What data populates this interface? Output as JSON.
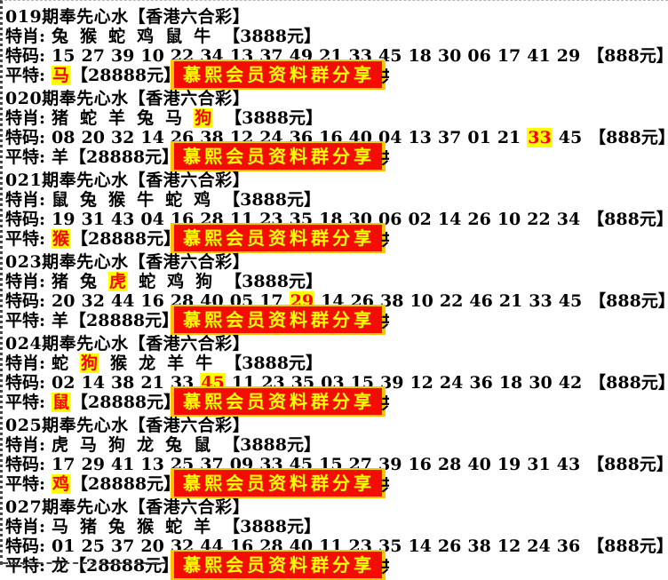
{
  "labels": {
    "zodiac_label": "特肖:",
    "number_label": "特码:",
    "flat_label": "平特:",
    "zodiac_price": "【3888元】",
    "number_price": "【888元】",
    "flat_price": "【28888元】"
  },
  "banner": {
    "text": "慕熙会员资料群分享",
    "covered_fragment_left": "加",
    "covered_fragment_right": "共"
  },
  "colors": {
    "highlight_bg": "#ffff00",
    "highlight_fg": "#fb0000",
    "banner_bg": "#f20d00",
    "banner_border": "#ffc400",
    "banner_fg": "#ffff00"
  },
  "blocks": [
    {
      "title": "019期奉先心水【香港六合彩】",
      "zodiacs": [
        {
          "t": "兔",
          "hl": false
        },
        {
          "t": "猴",
          "hl": false
        },
        {
          "t": "蛇",
          "hl": false
        },
        {
          "t": "鸡",
          "hl": false
        },
        {
          "t": "鼠",
          "hl": false
        },
        {
          "t": "牛",
          "hl": false
        }
      ],
      "numbers": [
        {
          "t": "15",
          "hl": false
        },
        {
          "t": "27",
          "hl": false
        },
        {
          "t": "39",
          "hl": false
        },
        {
          "t": "10",
          "hl": false
        },
        {
          "t": "22",
          "hl": false
        },
        {
          "t": "34",
          "hl": false
        },
        {
          "t": "13",
          "hl": false
        },
        {
          "t": "37",
          "hl": false
        },
        {
          "t": "49",
          "hl": false
        },
        {
          "t": "21",
          "hl": false
        },
        {
          "t": "33",
          "hl": false
        },
        {
          "t": "45",
          "hl": false
        },
        {
          "t": "18",
          "hl": false
        },
        {
          "t": "30",
          "hl": false
        },
        {
          "t": "06",
          "hl": false
        },
        {
          "t": "17",
          "hl": false
        },
        {
          "t": "41",
          "hl": false
        },
        {
          "t": "29",
          "hl": false
        }
      ],
      "flat": {
        "t": "马",
        "hl": true
      }
    },
    {
      "title": "020期奉先心水【香港六合彩】",
      "zodiacs": [
        {
          "t": "猪",
          "hl": false
        },
        {
          "t": "蛇",
          "hl": false
        },
        {
          "t": "羊",
          "hl": false
        },
        {
          "t": "兔",
          "hl": false
        },
        {
          "t": "马",
          "hl": false
        },
        {
          "t": "狗",
          "hl": true
        }
      ],
      "numbers": [
        {
          "t": "08",
          "hl": false
        },
        {
          "t": "20",
          "hl": false
        },
        {
          "t": "32",
          "hl": false
        },
        {
          "t": "14",
          "hl": false
        },
        {
          "t": "26",
          "hl": false
        },
        {
          "t": "38",
          "hl": false
        },
        {
          "t": "12",
          "hl": false
        },
        {
          "t": "24",
          "hl": false
        },
        {
          "t": "36",
          "hl": false
        },
        {
          "t": "16",
          "hl": false
        },
        {
          "t": "40",
          "hl": false
        },
        {
          "t": "04",
          "hl": false
        },
        {
          "t": "13",
          "hl": false
        },
        {
          "t": "37",
          "hl": false
        },
        {
          "t": "01",
          "hl": false
        },
        {
          "t": "21",
          "hl": false
        },
        {
          "t": "33",
          "hl": true
        },
        {
          "t": "45",
          "hl": false
        }
      ],
      "flat": {
        "t": "羊",
        "hl": false
      }
    },
    {
      "title": "021期奉先心水【香港六合彩】",
      "zodiacs": [
        {
          "t": "鼠",
          "hl": false
        },
        {
          "t": "兔",
          "hl": false
        },
        {
          "t": "猴",
          "hl": false
        },
        {
          "t": "牛",
          "hl": false
        },
        {
          "t": "蛇",
          "hl": false
        },
        {
          "t": "鸡",
          "hl": false
        }
      ],
      "numbers": [
        {
          "t": "19",
          "hl": false
        },
        {
          "t": "31",
          "hl": false
        },
        {
          "t": "43",
          "hl": false
        },
        {
          "t": "04",
          "hl": false
        },
        {
          "t": "16",
          "hl": false
        },
        {
          "t": "28",
          "hl": false
        },
        {
          "t": "11",
          "hl": false
        },
        {
          "t": "23",
          "hl": false
        },
        {
          "t": "35",
          "hl": false
        },
        {
          "t": "18",
          "hl": false
        },
        {
          "t": "30",
          "hl": false
        },
        {
          "t": "06",
          "hl": false
        },
        {
          "t": "02",
          "hl": false
        },
        {
          "t": "14",
          "hl": false
        },
        {
          "t": "26",
          "hl": false
        },
        {
          "t": "10",
          "hl": false
        },
        {
          "t": "22",
          "hl": false
        },
        {
          "t": "34",
          "hl": false
        }
      ],
      "flat": {
        "t": "猴",
        "hl": true
      }
    },
    {
      "title": "023期奉先心水【香港六合彩】",
      "zodiacs": [
        {
          "t": "猪",
          "hl": false
        },
        {
          "t": "兔",
          "hl": false
        },
        {
          "t": "虎",
          "hl": true
        },
        {
          "t": "蛇",
          "hl": false
        },
        {
          "t": "鸡",
          "hl": false
        },
        {
          "t": "狗",
          "hl": false
        }
      ],
      "numbers": [
        {
          "t": "20",
          "hl": false
        },
        {
          "t": "32",
          "hl": false
        },
        {
          "t": "44",
          "hl": false
        },
        {
          "t": "16",
          "hl": false
        },
        {
          "t": "28",
          "hl": false
        },
        {
          "t": "40",
          "hl": false
        },
        {
          "t": "05",
          "hl": false
        },
        {
          "t": "17",
          "hl": false
        },
        {
          "t": "29",
          "hl": true
        },
        {
          "t": "14",
          "hl": false
        },
        {
          "t": "26",
          "hl": false
        },
        {
          "t": "38",
          "hl": false
        },
        {
          "t": "10",
          "hl": false
        },
        {
          "t": "22",
          "hl": false
        },
        {
          "t": "46",
          "hl": false
        },
        {
          "t": "21",
          "hl": false
        },
        {
          "t": "33",
          "hl": false
        },
        {
          "t": "45",
          "hl": false
        }
      ],
      "flat": {
        "t": "羊",
        "hl": false
      }
    },
    {
      "title": "024期奉先心水【香港六合彩】",
      "zodiacs": [
        {
          "t": "蛇",
          "hl": false
        },
        {
          "t": "狗",
          "hl": true
        },
        {
          "t": "猴",
          "hl": false
        },
        {
          "t": "龙",
          "hl": false
        },
        {
          "t": "羊",
          "hl": false
        },
        {
          "t": "牛",
          "hl": false
        }
      ],
      "numbers": [
        {
          "t": "02",
          "hl": false
        },
        {
          "t": "14",
          "hl": false
        },
        {
          "t": "38",
          "hl": false
        },
        {
          "t": "21",
          "hl": false
        },
        {
          "t": "33",
          "hl": false
        },
        {
          "t": "45",
          "hl": true
        },
        {
          "t": "11",
          "hl": false
        },
        {
          "t": "23",
          "hl": false
        },
        {
          "t": "35",
          "hl": false
        },
        {
          "t": "03",
          "hl": false
        },
        {
          "t": "15",
          "hl": false
        },
        {
          "t": "39",
          "hl": false
        },
        {
          "t": "12",
          "hl": false
        },
        {
          "t": "24",
          "hl": false
        },
        {
          "t": "36",
          "hl": false
        },
        {
          "t": "18",
          "hl": false
        },
        {
          "t": "30",
          "hl": false
        },
        {
          "t": "42",
          "hl": false
        }
      ],
      "flat": {
        "t": "鼠",
        "hl": true
      }
    },
    {
      "title": "025期奉先心水【香港六合彩】",
      "zodiacs": [
        {
          "t": "虎",
          "hl": false
        },
        {
          "t": "马",
          "hl": false
        },
        {
          "t": "狗",
          "hl": false
        },
        {
          "t": "龙",
          "hl": false
        },
        {
          "t": "兔",
          "hl": false
        },
        {
          "t": "鼠",
          "hl": false
        }
      ],
      "numbers": [
        {
          "t": "17",
          "hl": false
        },
        {
          "t": "29",
          "hl": false
        },
        {
          "t": "41",
          "hl": false
        },
        {
          "t": "13",
          "hl": false
        },
        {
          "t": "25",
          "hl": false
        },
        {
          "t": "37",
          "hl": false
        },
        {
          "t": "09",
          "hl": false
        },
        {
          "t": "33",
          "hl": false
        },
        {
          "t": "45",
          "hl": false
        },
        {
          "t": "15",
          "hl": false
        },
        {
          "t": "27",
          "hl": false
        },
        {
          "t": "39",
          "hl": false
        },
        {
          "t": "16",
          "hl": false
        },
        {
          "t": "28",
          "hl": false
        },
        {
          "t": "40",
          "hl": false
        },
        {
          "t": "19",
          "hl": false
        },
        {
          "t": "31",
          "hl": false
        },
        {
          "t": "43",
          "hl": false
        }
      ],
      "flat": {
        "t": "鸡",
        "hl": true
      }
    },
    {
      "title": "027期奉先心水【香港六合彩】",
      "zodiacs": [
        {
          "t": "马",
          "hl": false
        },
        {
          "t": "猪",
          "hl": false
        },
        {
          "t": "兔",
          "hl": false
        },
        {
          "t": "猴",
          "hl": false
        },
        {
          "t": "蛇",
          "hl": false
        },
        {
          "t": "羊",
          "hl": false
        }
      ],
      "numbers": [
        {
          "t": "01",
          "hl": false
        },
        {
          "t": "25",
          "hl": false
        },
        {
          "t": "37",
          "hl": false
        },
        {
          "t": "20",
          "hl": false
        },
        {
          "t": "32",
          "hl": false
        },
        {
          "t": "44",
          "hl": false
        },
        {
          "t": "16",
          "hl": false
        },
        {
          "t": "28",
          "hl": false
        },
        {
          "t": "40",
          "hl": false
        },
        {
          "t": "11",
          "hl": false
        },
        {
          "t": "23",
          "hl": false
        },
        {
          "t": "35",
          "hl": false
        },
        {
          "t": "14",
          "hl": false
        },
        {
          "t": "26",
          "hl": false
        },
        {
          "t": "38",
          "hl": false
        },
        {
          "t": "12",
          "hl": false
        },
        {
          "t": "24",
          "hl": false
        },
        {
          "t": "36",
          "hl": false
        }
      ],
      "flat": {
        "t": "龙",
        "hl": false
      }
    }
  ]
}
